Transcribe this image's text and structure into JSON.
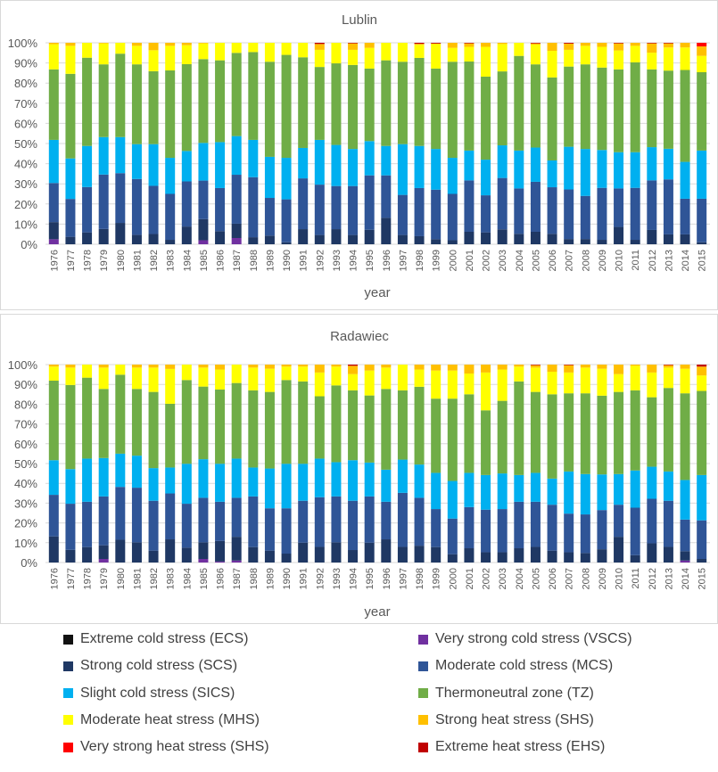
{
  "legend_position": "bottom",
  "colors": {
    "ECS": "#111111",
    "VSCS": "#7030a0",
    "SCS": "#1f3864",
    "MCS": "#2f5597",
    "SICS": "#00b0f0",
    "TZ": "#70ad47",
    "MHS": "#ffff00",
    "SHS": "#ffc000",
    "VSHS": "#ff0000",
    "EHS": "#c00000"
  },
  "legend": [
    {
      "key": "ECS",
      "label": "Extreme cold stress (ECS)"
    },
    {
      "key": "VSCS",
      "label": "Very strong cold stress (VSCS)"
    },
    {
      "key": "SCS",
      "label": "Strong cold stress (SCS)"
    },
    {
      "key": "MCS",
      "label": "Moderate cold stress (MCS)"
    },
    {
      "key": "SICS",
      "label": "Slight cold stress (SICS)"
    },
    {
      "key": "TZ",
      "label": "Thermoneutral zone (TZ)"
    },
    {
      "key": "MHS",
      "label": "Moderate heat stress (MHS)"
    },
    {
      "key": "SHS",
      "label": "Strong heat stress (SHS)"
    },
    {
      "key": "VSHS",
      "label": "Very strong heat stress (SHS)"
    },
    {
      "key": "EHS",
      "label": "Extreme heat stress (EHS)"
    }
  ],
  "chart_data": [
    {
      "type": "bar",
      "stacked": "percent",
      "title": "Lublin",
      "xlabel": "year",
      "ylabel": "",
      "ylim": [
        0,
        100
      ],
      "yticks": [
        "0%",
        "10%",
        "20%",
        "30%",
        "40%",
        "50%",
        "60%",
        "70%",
        "80%",
        "90%",
        "100%"
      ],
      "grid": true,
      "categories": [
        "1976",
        "1977",
        "1978",
        "1979",
        "1980",
        "1981",
        "1982",
        "1983",
        "1984",
        "1985",
        "1986",
        "1987",
        "1988",
        "1989",
        "1990",
        "1991",
        "1992",
        "1993",
        "1994",
        "1995",
        "1996",
        "1997",
        "1998",
        "1999",
        "2000",
        "2001",
        "2002",
        "2003",
        "2004",
        "2005",
        "2006",
        "2007",
        "2008",
        "2009",
        "2010",
        "2011",
        "2012",
        "2013",
        "2014",
        "2015"
      ],
      "series": [
        {
          "name": "Extreme cold stress (ECS)",
          "key": "ECS",
          "values": [
            0,
            0,
            0,
            0,
            0,
            0,
            0,
            0,
            0,
            0,
            0,
            0,
            0,
            0,
            0,
            0,
            0,
            0,
            0,
            0,
            0,
            0,
            0,
            0,
            0,
            0,
            0,
            0,
            0,
            0,
            0,
            0,
            0,
            0,
            0,
            0,
            0,
            0,
            0,
            0
          ]
        },
        {
          "name": "Very strong cold stress (VSCS)",
          "key": "VSCS",
          "values": [
            2.5,
            0,
            0,
            0,
            0,
            0,
            0,
            0,
            0,
            2.0,
            0,
            3.1,
            0,
            0,
            0,
            0,
            0,
            0,
            0,
            0,
            0,
            0,
            0,
            0,
            0,
            0,
            0,
            0,
            0,
            0,
            0,
            0,
            0,
            0,
            0,
            0,
            0,
            0,
            0,
            0
          ]
        },
        {
          "name": "Strong cold stress (SCS)",
          "key": "SCS",
          "values": [
            8.5,
            3.7,
            5.9,
            7.6,
            10.6,
            4.7,
            5.1,
            2.2,
            8.8,
            10.5,
            6.5,
            7.1,
            3.5,
            4.3,
            1.0,
            7.5,
            4.6,
            7.5,
            4.6,
            7.2,
            13.1,
            4.6,
            4.0,
            2.5,
            2.0,
            6.2,
            5.9,
            7.4,
            5.2,
            6.2,
            5.2,
            2.6,
            2.6,
            2.2,
            8.6,
            2.2,
            7.1,
            4.9,
            4.9,
            1.0
          ]
        },
        {
          "name": "Moderate cold stress (MCS)",
          "key": "MCS",
          "values": [
            19.4,
            18.8,
            22.5,
            27.0,
            24.7,
            27.7,
            23.9,
            22.8,
            22.4,
            19.1,
            21.4,
            24.3,
            29.8,
            18.7,
            21.3,
            25.2,
            25.0,
            21.4,
            24.3,
            27.0,
            21.1,
            19.9,
            23.9,
            24.6,
            23.0,
            25.5,
            18.4,
            25.5,
            22.5,
            24.8,
            23.1,
            24.6,
            21.4,
            25.8,
            19.1,
            25.8,
            24.6,
            27.3,
            17.7,
            21.6
          ]
        },
        {
          "name": "Slight cold stress (SICS)",
          "key": "SICS",
          "values": [
            21.4,
            20.1,
            20.4,
            18.6,
            17.9,
            17.3,
            20.7,
            17.9,
            15.1,
            18.7,
            22.8,
            19.2,
            18.5,
            20.4,
            20.6,
            15.1,
            22.2,
            20.4,
            18.4,
            17.0,
            14.6,
            25.2,
            20.9,
            20.2,
            17.9,
            14.8,
            17.7,
            16.2,
            18.8,
            17.0,
            13.3,
            21.2,
            23.3,
            18.8,
            18.0,
            17.7,
            16.5,
            15.2,
            18.3,
            23.9
          ]
        },
        {
          "name": "Thermoneutral zone (TZ)",
          "key": "TZ",
          "values": [
            35.0,
            42.0,
            43.8,
            36.1,
            41.4,
            39.6,
            36.2,
            43.4,
            43.1,
            41.6,
            40.6,
            41.3,
            43.6,
            47.2,
            51.1,
            45.0,
            36.2,
            40.5,
            41.7,
            36.0,
            42.5,
            40.9,
            43.7,
            39.9,
            47.7,
            44.2,
            41.2,
            36.7,
            47.0,
            41.3,
            41.2,
            39.8,
            42.0,
            40.9,
            41.1,
            44.6,
            38.6,
            38.8,
            45.6,
            38.9
          ]
        },
        {
          "name": "Moderate heat stress (MHS)",
          "key": "MHS",
          "values": [
            12.5,
            13.9,
            7.4,
            10.4,
            5.4,
            9.2,
            10.4,
            12.2,
            9.4,
            7.8,
            8.7,
            5.0,
            4.6,
            9.4,
            6.0,
            7.2,
            8.5,
            10.2,
            7.5,
            10.3,
            8.7,
            9.4,
            6.5,
            12.4,
            6.9,
            7.3,
            14.8,
            13.6,
            6.5,
            9.8,
            13.2,
            8.3,
            9.2,
            10.3,
            9.4,
            8.2,
            8.3,
            11.5,
            11.2,
            8.1
          ]
        },
        {
          "name": "Strong heat stress (SHS)",
          "key": "SHS",
          "values": [
            0.7,
            1.5,
            0,
            0.3,
            0,
            1.5,
            3.7,
            1.5,
            1.2,
            0.3,
            0,
            0,
            0,
            0,
            0,
            0,
            2.9,
            0,
            3.2,
            2.5,
            0,
            0,
            0.5,
            0,
            2.5,
            1.7,
            2.0,
            0.6,
            0,
            0.6,
            4.0,
            3.1,
            1.5,
            2.0,
            3.5,
            1.5,
            4.6,
            2.0,
            2.3,
            4.7
          ]
        },
        {
          "name": "Very strong heat stress (SHS)",
          "key": "VSHS",
          "values": [
            0,
            0,
            0,
            0,
            0,
            0,
            0,
            0,
            0,
            0,
            0,
            0,
            0,
            0,
            0,
            0,
            0,
            0,
            0,
            0,
            0,
            0,
            0,
            0,
            0,
            0,
            0,
            0,
            0,
            0,
            0,
            0,
            0,
            0,
            0,
            0,
            0,
            0,
            0,
            1.8
          ]
        },
        {
          "name": "Extreme heat stress (EHS)",
          "key": "EHS",
          "values": [
            0,
            0,
            0,
            0,
            0,
            0,
            0,
            0,
            0,
            0,
            0,
            0,
            0,
            0,
            0,
            0,
            0.6,
            0,
            0.3,
            0,
            0,
            0,
            0.5,
            0.4,
            0,
            0.3,
            0,
            0,
            0,
            0.3,
            0,
            0.4,
            0,
            0,
            0.3,
            0,
            0.3,
            0.3,
            0,
            0
          ]
        }
      ]
    },
    {
      "type": "bar",
      "stacked": "percent",
      "title": "Radawiec",
      "xlabel": "year",
      "ylabel": "",
      "ylim": [
        0,
        100
      ],
      "yticks": [
        "0%",
        "10%",
        "20%",
        "30%",
        "40%",
        "50%",
        "60%",
        "70%",
        "80%",
        "90%",
        "100%"
      ],
      "grid": true,
      "categories": [
        "1976",
        "1977",
        "1978",
        "1979",
        "1980",
        "1981",
        "1982",
        "1983",
        "1984",
        "1985",
        "1986",
        "1987",
        "1988",
        "1989",
        "1990",
        "1991",
        "1992",
        "1993",
        "1994",
        "1995",
        "1996",
        "1997",
        "1998",
        "1999",
        "2000",
        "2001",
        "2002",
        "2003",
        "2004",
        "2005",
        "2006",
        "2007",
        "2008",
        "2009",
        "2010",
        "2011",
        "2012",
        "2013",
        "2014",
        "2015"
      ],
      "series": [
        {
          "name": "Extreme cold stress (ECS)",
          "key": "ECS",
          "values": [
            0,
            0,
            0,
            0,
            0,
            0,
            0,
            0,
            0,
            0,
            0,
            0,
            0,
            0,
            0,
            0,
            0,
            0,
            0,
            0,
            0,
            0,
            0,
            0,
            0,
            0,
            0,
            0,
            0,
            0,
            0,
            0,
            0,
            0,
            0,
            0,
            0,
            0,
            0,
            0
          ]
        },
        {
          "name": "Very strong cold stress (VSCS)",
          "key": "VSCS",
          "values": [
            0,
            0,
            0,
            1.8,
            0,
            0,
            0,
            0,
            0,
            1.8,
            0.5,
            1.0,
            0,
            0,
            0,
            0,
            0,
            0,
            0,
            0,
            0,
            0,
            0,
            0,
            0,
            0,
            0,
            0,
            0,
            0,
            0,
            0,
            0,
            0,
            0,
            0,
            0,
            0,
            1.0,
            0
          ]
        },
        {
          "name": "Strong cold stress (SCS)",
          "key": "SCS",
          "values": [
            13.2,
            6.4,
            7.8,
            6.9,
            11.5,
            10.2,
            6.0,
            11.7,
            7.5,
            8.4,
            10.4,
            12.0,
            7.8,
            6.0,
            4.5,
            10.0,
            7.9,
            10.2,
            6.3,
            10.0,
            11.7,
            7.9,
            8.5,
            7.8,
            4.2,
            7.2,
            5.2,
            5.2,
            7.2,
            7.9,
            6.0,
            5.2,
            4.8,
            6.7,
            13.0,
            3.7,
            9.7,
            7.9,
            4.7,
            1.8
          ]
        },
        {
          "name": "Moderate cold stress (MCS)",
          "key": "MCS",
          "values": [
            21.0,
            23.3,
            22.9,
            24.7,
            26.7,
            27.6,
            25.2,
            23.2,
            22.2,
            22.5,
            19.8,
            19.7,
            25.6,
            21.4,
            22.9,
            21.2,
            25.1,
            23.2,
            24.9,
            23.4,
            19.0,
            27.3,
            24.2,
            19.2,
            18.0,
            20.8,
            21.5,
            21.8,
            23.5,
            22.8,
            23.2,
            19.5,
            19.5,
            19.8,
            16.2,
            24.0,
            22.5,
            23.3,
            16.0,
            19.5
          ]
        },
        {
          "name": "Slight cold stress (SICS)",
          "key": "SICS",
          "values": [
            17.5,
            17.5,
            21.8,
            19.4,
            16.8,
            16.2,
            16.5,
            13.1,
            20.2,
            19.5,
            19.2,
            19.8,
            14.6,
            20.1,
            22.5,
            18.7,
            19.5,
            17.3,
            20.5,
            17.1,
            16.2,
            16.8,
            16.8,
            18.3,
            19.0,
            17.3,
            17.5,
            18.0,
            13.5,
            14.6,
            13.2,
            21.3,
            20.4,
            18.0,
            15.5,
            18.8,
            16.2,
            14.8,
            20.0,
            22.9
          ]
        },
        {
          "name": "Thermoneutral zone (TZ)",
          "key": "TZ",
          "values": [
            40.2,
            42.5,
            40.9,
            34.9,
            39.9,
            33.7,
            38.5,
            32.2,
            42.3,
            36.7,
            37.5,
            38.2,
            39.0,
            38.7,
            42.3,
            41.6,
            31.5,
            38.8,
            35.3,
            33.9,
            40.8,
            35.0,
            39.3,
            37.5,
            41.6,
            39.7,
            32.7,
            36.7,
            47.3,
            40.9,
            42.6,
            39.5,
            40.8,
            39.8,
            41.5,
            40.5,
            35.1,
            42.2,
            43.8,
            42.5
          ]
        },
        {
          "name": "Moderate heat stress (MHS)",
          "key": "MHS",
          "values": [
            7.1,
            8.8,
            6.6,
            10.8,
            5.1,
            10.8,
            12.3,
            17.6,
            7.8,
            9.6,
            10.1,
            9.3,
            11.5,
            11.7,
            6.8,
            7.5,
            12.0,
            9.5,
            8.2,
            12.6,
            10.8,
            13.0,
            8.7,
            14.2,
            14.2,
            10.5,
            19.1,
            15.8,
            7.5,
            12.3,
            11.4,
            10.5,
            13.0,
            13.6,
            9.0,
            12.4,
            12.5,
            10.3,
            12.4,
            7.8
          ]
        },
        {
          "name": "Strong heat stress (SHS)",
          "key": "SHS",
          "values": [
            1.0,
            1.5,
            0,
            1.5,
            0,
            1.5,
            1.5,
            2.2,
            0,
            1.5,
            2.5,
            0,
            1.5,
            2.1,
            1.0,
            1.0,
            4.0,
            1.0,
            4.2,
            3.0,
            1.5,
            0,
            2.5,
            3.0,
            3.0,
            4.5,
            4.0,
            2.5,
            1.0,
            1.2,
            3.6,
            3.7,
            1.5,
            2.1,
            4.8,
            0.6,
            4.0,
            1.2,
            2.1,
            4.5
          ]
        },
        {
          "name": "Very strong heat stress (SHS)",
          "key": "VSHS",
          "values": [
            0,
            0,
            0,
            0,
            0,
            0,
            0,
            0,
            0,
            0,
            0,
            0,
            0,
            0,
            0,
            0,
            0,
            0,
            0,
            0,
            0,
            0,
            0,
            0,
            0,
            0,
            0,
            0,
            0,
            0,
            0,
            0,
            0,
            0,
            0,
            0,
            0,
            0,
            0,
            0
          ]
        },
        {
          "name": "Extreme heat stress (EHS)",
          "key": "EHS",
          "values": [
            0,
            0,
            0,
            0,
            0,
            0,
            0,
            0,
            0,
            0,
            0,
            0,
            0,
            0,
            0,
            0,
            0,
            0,
            0.6,
            0,
            0,
            0,
            0,
            0,
            0,
            0,
            0,
            0,
            0,
            0.3,
            0,
            0.3,
            0,
            0,
            0,
            0,
            0,
            0.3,
            0,
            1.0
          ]
        }
      ]
    }
  ]
}
